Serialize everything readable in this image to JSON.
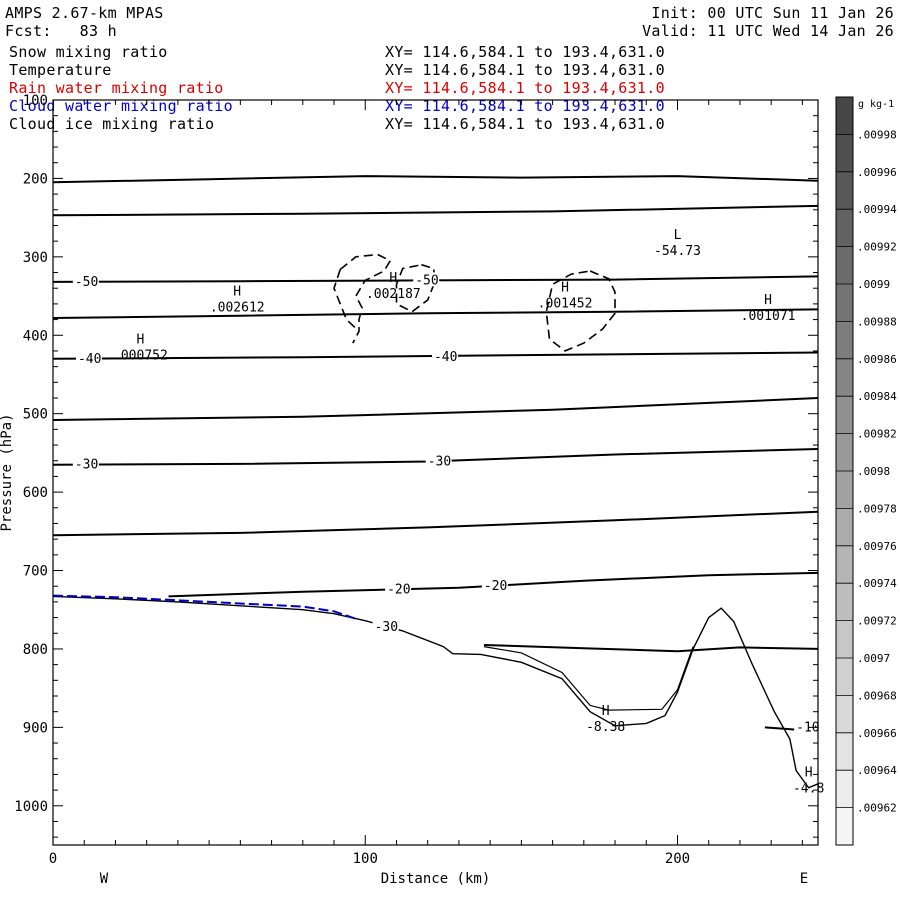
{
  "header": {
    "model": "AMPS 2.67-km MPAS",
    "init": "Init: 00 UTC Sun 11 Jan 26",
    "fcst": "Fcst:   83 h",
    "valid": "Valid: 11 UTC Wed 14 Jan 26"
  },
  "fields": [
    {
      "name": "Snow mixing ratio",
      "xy": "XY= 114.6,584.1 to 193.4,631.0",
      "color": "#000000"
    },
    {
      "name": "Temperature",
      "xy": "XY= 114.6,584.1 to 193.4,631.0",
      "color": "#000000"
    },
    {
      "name": "Rain water mixing ratio",
      "xy": "XY= 114.6,584.1 to 193.4,631.0",
      "color": "#dd0000"
    },
    {
      "name": "Cloud water mixing ratio",
      "xy": "XY= 114.6,584.1 to 193.4,631.0",
      "color": "#0000cc"
    },
    {
      "name": "Cloud ice mixing ratio",
      "xy": "XY= 114.6,584.1 to 193.4,631.0",
      "color": "#000000"
    }
  ],
  "chart_data": {
    "type": "line",
    "xlabel": "Distance (km)",
    "ylabel": "Pressure (hPa)",
    "xlim": [
      0,
      245
    ],
    "ylim": [
      1050,
      100
    ],
    "x_ticks": [
      0,
      100,
      200
    ],
    "y_ticks": [
      100,
      200,
      300,
      400,
      500,
      600,
      700,
      800,
      900,
      1000
    ],
    "x_end_labels": {
      "left": "W",
      "right": "E"
    },
    "temperature_contours": [
      {
        "points": [
          [
            0,
            205
          ],
          [
            50,
            201
          ],
          [
            100,
            197
          ],
          [
            150,
            199
          ],
          [
            200,
            197
          ],
          [
            245,
            203
          ]
        ]
      },
      {
        "points": [
          [
            0,
            247
          ],
          [
            80,
            245
          ],
          [
            160,
            242
          ],
          [
            245,
            235
          ]
        ]
      },
      {
        "points": [
          [
            0,
            332
          ],
          [
            60,
            331
          ],
          [
            120,
            330
          ],
          [
            180,
            329
          ],
          [
            245,
            325
          ]
        ]
      },
      {
        "points": [
          [
            0,
            378
          ],
          [
            60,
            375
          ],
          [
            120,
            372
          ],
          [
            180,
            370
          ],
          [
            245,
            367
          ]
        ]
      },
      {
        "points": [
          [
            0,
            430
          ],
          [
            80,
            428
          ],
          [
            160,
            425
          ],
          [
            245,
            422
          ]
        ]
      },
      {
        "points": [
          [
            0,
            508
          ],
          [
            80,
            504
          ],
          [
            160,
            495
          ],
          [
            245,
            480
          ]
        ]
      },
      {
        "points": [
          [
            0,
            565
          ],
          [
            60,
            564
          ],
          [
            120,
            561
          ],
          [
            180,
            552
          ],
          [
            245,
            545
          ]
        ]
      },
      {
        "points": [
          [
            0,
            655
          ],
          [
            60,
            652
          ],
          [
            120,
            645
          ],
          [
            180,
            636
          ],
          [
            245,
            625
          ]
        ]
      },
      {
        "points": [
          [
            37,
            733
          ],
          [
            80,
            727
          ],
          [
            130,
            722
          ],
          [
            170,
            713
          ],
          [
            210,
            706
          ],
          [
            245,
            703
          ]
        ]
      },
      {
        "points": [
          [
            138,
            795
          ],
          [
            170,
            799
          ],
          [
            200,
            803
          ],
          [
            220,
            798
          ],
          [
            245,
            800
          ]
        ]
      },
      {
        "points": [
          [
            228,
            900
          ],
          [
            245,
            905
          ]
        ]
      }
    ],
    "terrain": [
      [
        0,
        733
      ],
      [
        20,
        736
      ],
      [
        40,
        740
      ],
      [
        60,
        745
      ],
      [
        80,
        750
      ],
      [
        90,
        755
      ],
      [
        100,
        764
      ],
      [
        112,
        777
      ],
      [
        125,
        797
      ],
      [
        128,
        806
      ],
      [
        137,
        807
      ],
      [
        150,
        817
      ],
      [
        163,
        838
      ],
      [
        172,
        880
      ],
      [
        180,
        898
      ],
      [
        190,
        895
      ],
      [
        196,
        885
      ],
      [
        200,
        855
      ],
      [
        205,
        800
      ],
      [
        210,
        760
      ],
      [
        214,
        748
      ],
      [
        218,
        765
      ],
      [
        224,
        820
      ],
      [
        231,
        880
      ],
      [
        236,
        915
      ],
      [
        238,
        955
      ],
      [
        242,
        977
      ],
      [
        245,
        972
      ]
    ],
    "terrain_offset": [
      [
        138,
        797
      ],
      [
        150,
        805
      ],
      [
        163,
        830
      ],
      [
        172,
        872
      ],
      [
        178,
        878
      ],
      [
        195,
        877
      ],
      [
        200,
        852
      ],
      [
        205,
        797
      ]
    ],
    "cloud_water_line": [
      [
        0,
        732
      ],
      [
        20,
        734
      ],
      [
        40,
        738
      ],
      [
        60,
        742
      ],
      [
        80,
        746
      ],
      [
        90,
        752
      ],
      [
        98,
        763
      ]
    ],
    "contour_labels": [
      {
        "text": "-50",
        "x": 7,
        "y": 332
      },
      {
        "text": "-50",
        "x": 116,
        "y": 330
      },
      {
        "text": "-40",
        "x": 8,
        "y": 430
      },
      {
        "text": "-40",
        "x": 122,
        "y": 428
      },
      {
        "text": "-30",
        "x": 7,
        "y": 565
      },
      {
        "text": "-30",
        "x": 120,
        "y": 561
      },
      {
        "text": "-20",
        "x": 107,
        "y": 724
      },
      {
        "text": "-20",
        "x": 138,
        "y": 720
      },
      {
        "text": "-30",
        "x": 103,
        "y": 772
      },
      {
        "text": "-10",
        "x": 238,
        "y": 900
      }
    ],
    "extrema": [
      {
        "kind": "H",
        "value": ".000752",
        "x": 28,
        "y": 418
      },
      {
        "kind": "H",
        "value": ".002612",
        "x": 59,
        "y": 357
      },
      {
        "kind": "H",
        "value": ".002187",
        "x": 109,
        "y": 340
      },
      {
        "kind": "H",
        "value": ".001452",
        "x": 164,
        "y": 352
      },
      {
        "kind": "H",
        "value": ".001071",
        "x": 229,
        "y": 368
      },
      {
        "kind": "L",
        "value": "-54.73",
        "x": 200,
        "y": 285
      },
      {
        "kind": "H",
        "value": "-8.38",
        "x": 177,
        "y": 892
      },
      {
        "kind": "H",
        "value": "-4.8",
        "x": 242,
        "y": 970
      }
    ],
    "snow_dashed_contours": [
      [
        [
          92,
          316
        ],
        [
          97,
          300
        ],
        [
          104,
          297
        ],
        [
          108,
          305
        ],
        [
          106,
          318
        ],
        [
          100,
          330
        ],
        [
          97,
          350
        ],
        [
          99,
          365
        ],
        [
          98,
          380
        ],
        [
          98,
          395
        ],
        [
          96,
          410
        ]
      ],
      [
        [
          92,
          316
        ],
        [
          90,
          340
        ],
        [
          94,
          380
        ],
        [
          98,
          395
        ]
      ],
      [
        [
          118,
          310
        ],
        [
          122,
          315
        ],
        [
          122,
          335
        ],
        [
          120,
          355
        ],
        [
          115,
          370
        ],
        [
          110,
          360
        ],
        [
          110,
          335
        ],
        [
          112,
          315
        ],
        [
          118,
          310
        ]
      ],
      [
        [
          172,
          318
        ],
        [
          178,
          328
        ],
        [
          180,
          345
        ],
        [
          180,
          372
        ],
        [
          176,
          392
        ],
        [
          170,
          410
        ],
        [
          164,
          420
        ],
        [
          159,
          405
        ],
        [
          158,
          370
        ],
        [
          160,
          335
        ],
        [
          166,
          322
        ],
        [
          172,
          318
        ]
      ]
    ],
    "colorbar": {
      "unit": "g kg-1",
      "labels": [
        ".00998",
        ".00996",
        ".00994",
        ".00992",
        ".0099",
        ".00988",
        ".00986",
        ".00984",
        ".00982",
        ".0098",
        ".00978",
        ".00976",
        ".00974",
        ".00972",
        ".0097",
        ".00968",
        ".00966",
        ".00964",
        ".00962"
      ]
    }
  }
}
